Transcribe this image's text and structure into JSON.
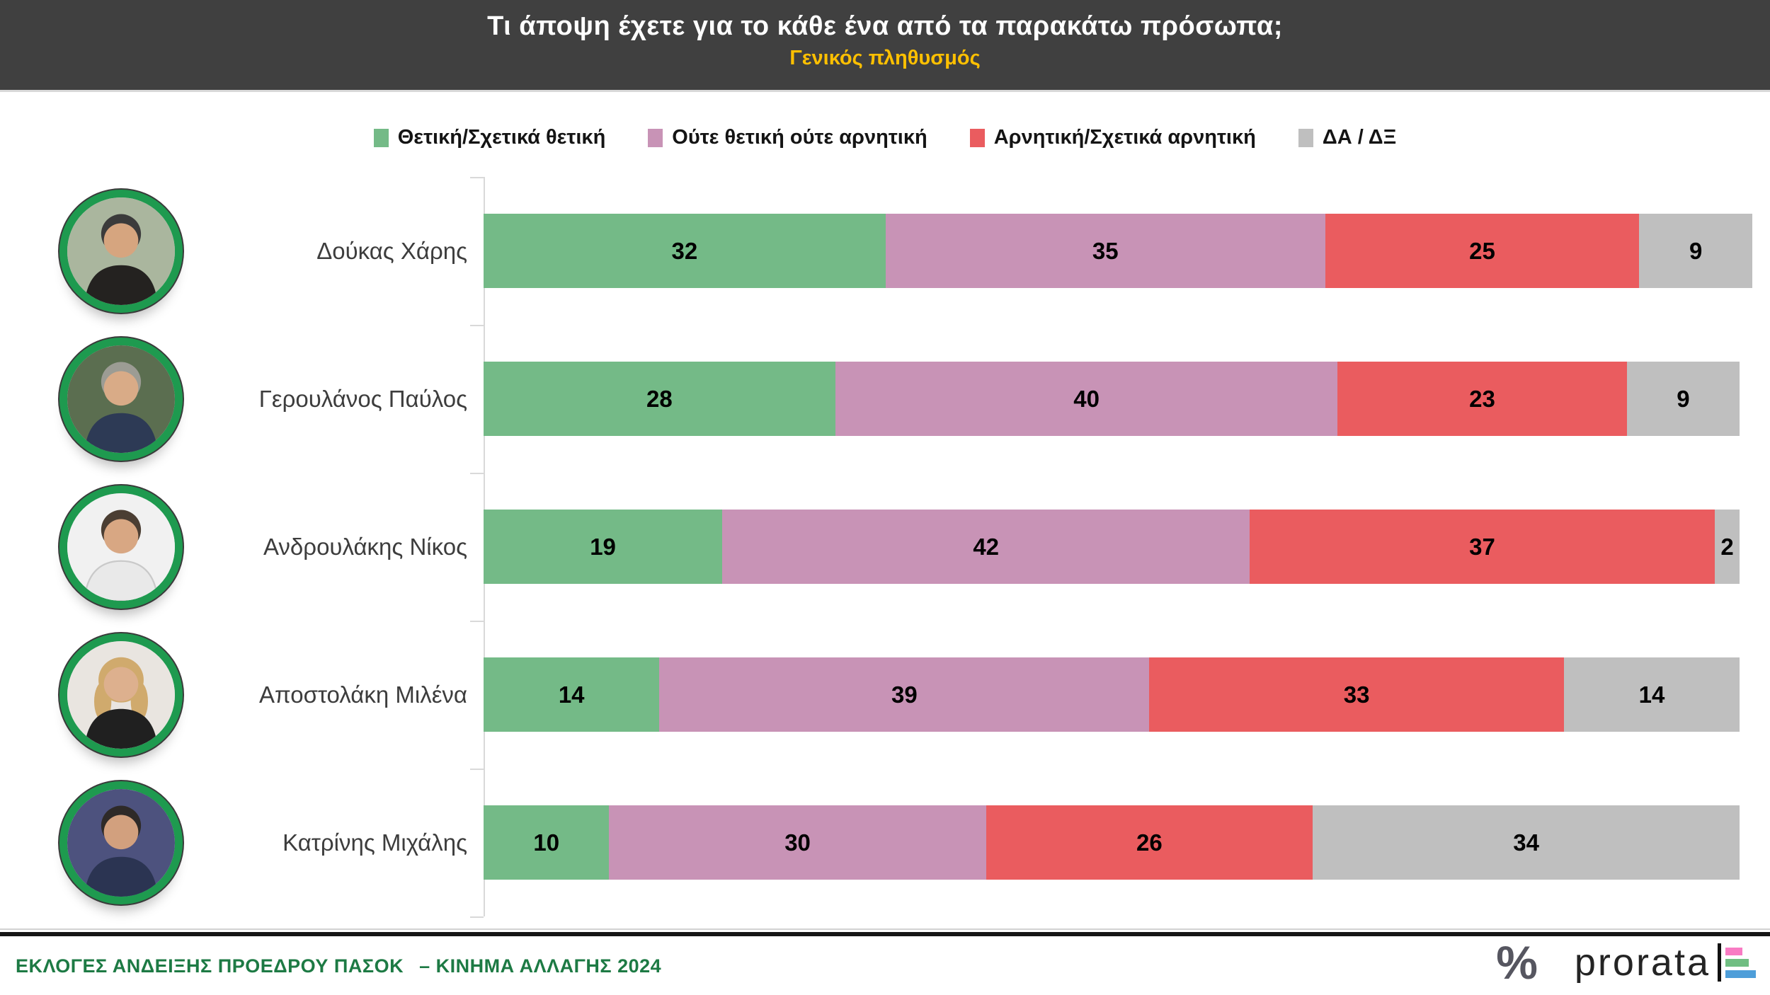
{
  "header": {
    "title": "Τι άποψη έχετε για το κάθε ένα από τα παρακάτω πρόσωπα;",
    "subtitle": "Γενικός πληθυσμός"
  },
  "legend": [
    {
      "label": "Θετική/Σχετικά θετική",
      "color": "#74BA87"
    },
    {
      "label": "Ούτε θετική ούτε αρνητική",
      "color": "#C893B6"
    },
    {
      "label": "Αρνητική/Σχετικά αρνητική",
      "color": "#EA5C5F"
    },
    {
      "label": "ΔΑ / ΔΞ",
      "color": "#BFBFBF"
    }
  ],
  "chart_data": {
    "type": "bar",
    "orientation": "horizontal",
    "stacked": true,
    "title": "Τι άποψη έχετε για το κάθε ένα από τα παρακάτω πρόσωπα;",
    "subtitle": "Γενικός πληθυσμός",
    "categories": [
      "Δούκας Χάρης",
      "Γερουλάνος Παύλος",
      "Ανδρουλάκης Νίκος",
      "Αποστολάκη Μιλένα",
      "Κατρίνης Μιχάλης"
    ],
    "series": [
      {
        "name": "Θετική/Σχετικά θετική",
        "color": "#74BA87",
        "values": [
          32,
          28,
          19,
          14,
          10
        ]
      },
      {
        "name": "Ούτε θετική ούτε αρνητική",
        "color": "#C893B6",
        "values": [
          35,
          40,
          42,
          39,
          30
        ]
      },
      {
        "name": "Αρνητική/Σχετικά αρνητική",
        "color": "#EA5C5F",
        "values": [
          25,
          23,
          37,
          33,
          26
        ]
      },
      {
        "name": "ΔΑ / ΔΞ",
        "color": "#BFBFBF",
        "values": [
          9,
          9,
          2,
          14,
          34
        ]
      }
    ],
    "xlim": [
      0,
      101
    ],
    "unit": "percent",
    "value_labels": "inside",
    "legend_position": "top",
    "grid": false
  },
  "avatars": [
    {
      "gender": "m",
      "bg": "#aab69e",
      "hair": "#3b3b3b",
      "skin": "#d6a57f",
      "shirt": "#242220"
    },
    {
      "gender": "m",
      "bg": "#5b6e50",
      "hair": "#9c9c94",
      "skin": "#d9ab87",
      "shirt": "#2d3a55"
    },
    {
      "gender": "m",
      "bg": "#f1f1f1",
      "hair": "#4b3e33",
      "skin": "#d8a783",
      "shirt": "#e9e9e9",
      "shirt_stroke": "#c9c9c9"
    },
    {
      "gender": "f",
      "bg": "#e9e5e0",
      "hair": "#d0aa6d",
      "skin": "#ddb08e",
      "shirt": "#202020"
    },
    {
      "gender": "m",
      "bg": "#4d527e",
      "hair": "#2e2a28",
      "skin": "#d2a07e",
      "shirt": "#2b3452"
    }
  ],
  "footer": {
    "left_text": "ΕΚΛΟΓΕΣ ΑΝΔΕΙΞΗΣ ΠΡΟΕΔΡΟΥ ΠΑΣΟΚ  – ΚΙΝΗΜΑ ΑΛΛΑΓΗΣ 2024",
    "brand": "prorata",
    "percent_icon": "%",
    "brand_colors": {
      "pink": "#F87BC3",
      "green": "#70BE82",
      "blue": "#4E9ED9",
      "percent": "#565660"
    }
  },
  "colors": {
    "header_bg": "#404040",
    "title_text": "#FFFFFF",
    "subtitle_text": "#FFC000",
    "positive": "#74BA87",
    "neutral": "#C893B6",
    "negative": "#EA5C5F",
    "dk_na": "#BFBFBF",
    "axis": "#D9D9D9",
    "avatar_ring": "#1E9A4F",
    "footer_text": "#1D7A44",
    "value_label": "#000000"
  }
}
